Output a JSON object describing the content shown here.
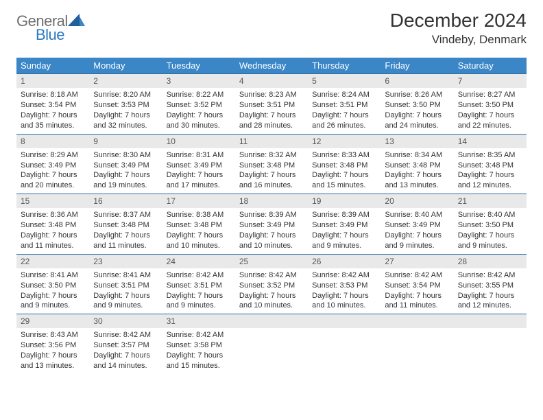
{
  "brand": {
    "word1": "General",
    "word2": "Blue"
  },
  "title": "December 2024",
  "location": "Vindeby, Denmark",
  "colors": {
    "header_bg": "#3b86c7",
    "header_text": "#ffffff",
    "rule": "#2b6aa3",
    "daynum_bg": "#e9e9e9",
    "body_text": "#333333",
    "logo_gray": "#6f6f6f",
    "logo_blue": "#2b78c2"
  },
  "weekdays": [
    "Sunday",
    "Monday",
    "Tuesday",
    "Wednesday",
    "Thursday",
    "Friday",
    "Saturday"
  ],
  "weeks": [
    [
      {
        "n": "1",
        "sr": "Sunrise: 8:18 AM",
        "ss": "Sunset: 3:54 PM",
        "dl": "Daylight: 7 hours and 35 minutes."
      },
      {
        "n": "2",
        "sr": "Sunrise: 8:20 AM",
        "ss": "Sunset: 3:53 PM",
        "dl": "Daylight: 7 hours and 32 minutes."
      },
      {
        "n": "3",
        "sr": "Sunrise: 8:22 AM",
        "ss": "Sunset: 3:52 PM",
        "dl": "Daylight: 7 hours and 30 minutes."
      },
      {
        "n": "4",
        "sr": "Sunrise: 8:23 AM",
        "ss": "Sunset: 3:51 PM",
        "dl": "Daylight: 7 hours and 28 minutes."
      },
      {
        "n": "5",
        "sr": "Sunrise: 8:24 AM",
        "ss": "Sunset: 3:51 PM",
        "dl": "Daylight: 7 hours and 26 minutes."
      },
      {
        "n": "6",
        "sr": "Sunrise: 8:26 AM",
        "ss": "Sunset: 3:50 PM",
        "dl": "Daylight: 7 hours and 24 minutes."
      },
      {
        "n": "7",
        "sr": "Sunrise: 8:27 AM",
        "ss": "Sunset: 3:50 PM",
        "dl": "Daylight: 7 hours and 22 minutes."
      }
    ],
    [
      {
        "n": "8",
        "sr": "Sunrise: 8:29 AM",
        "ss": "Sunset: 3:49 PM",
        "dl": "Daylight: 7 hours and 20 minutes."
      },
      {
        "n": "9",
        "sr": "Sunrise: 8:30 AM",
        "ss": "Sunset: 3:49 PM",
        "dl": "Daylight: 7 hours and 19 minutes."
      },
      {
        "n": "10",
        "sr": "Sunrise: 8:31 AM",
        "ss": "Sunset: 3:49 PM",
        "dl": "Daylight: 7 hours and 17 minutes."
      },
      {
        "n": "11",
        "sr": "Sunrise: 8:32 AM",
        "ss": "Sunset: 3:48 PM",
        "dl": "Daylight: 7 hours and 16 minutes."
      },
      {
        "n": "12",
        "sr": "Sunrise: 8:33 AM",
        "ss": "Sunset: 3:48 PM",
        "dl": "Daylight: 7 hours and 15 minutes."
      },
      {
        "n": "13",
        "sr": "Sunrise: 8:34 AM",
        "ss": "Sunset: 3:48 PM",
        "dl": "Daylight: 7 hours and 13 minutes."
      },
      {
        "n": "14",
        "sr": "Sunrise: 8:35 AM",
        "ss": "Sunset: 3:48 PM",
        "dl": "Daylight: 7 hours and 12 minutes."
      }
    ],
    [
      {
        "n": "15",
        "sr": "Sunrise: 8:36 AM",
        "ss": "Sunset: 3:48 PM",
        "dl": "Daylight: 7 hours and 11 minutes."
      },
      {
        "n": "16",
        "sr": "Sunrise: 8:37 AM",
        "ss": "Sunset: 3:48 PM",
        "dl": "Daylight: 7 hours and 11 minutes."
      },
      {
        "n": "17",
        "sr": "Sunrise: 8:38 AM",
        "ss": "Sunset: 3:48 PM",
        "dl": "Daylight: 7 hours and 10 minutes."
      },
      {
        "n": "18",
        "sr": "Sunrise: 8:39 AM",
        "ss": "Sunset: 3:49 PM",
        "dl": "Daylight: 7 hours and 10 minutes."
      },
      {
        "n": "19",
        "sr": "Sunrise: 8:39 AM",
        "ss": "Sunset: 3:49 PM",
        "dl": "Daylight: 7 hours and 9 minutes."
      },
      {
        "n": "20",
        "sr": "Sunrise: 8:40 AM",
        "ss": "Sunset: 3:49 PM",
        "dl": "Daylight: 7 hours and 9 minutes."
      },
      {
        "n": "21",
        "sr": "Sunrise: 8:40 AM",
        "ss": "Sunset: 3:50 PM",
        "dl": "Daylight: 7 hours and 9 minutes."
      }
    ],
    [
      {
        "n": "22",
        "sr": "Sunrise: 8:41 AM",
        "ss": "Sunset: 3:50 PM",
        "dl": "Daylight: 7 hours and 9 minutes."
      },
      {
        "n": "23",
        "sr": "Sunrise: 8:41 AM",
        "ss": "Sunset: 3:51 PM",
        "dl": "Daylight: 7 hours and 9 minutes."
      },
      {
        "n": "24",
        "sr": "Sunrise: 8:42 AM",
        "ss": "Sunset: 3:51 PM",
        "dl": "Daylight: 7 hours and 9 minutes."
      },
      {
        "n": "25",
        "sr": "Sunrise: 8:42 AM",
        "ss": "Sunset: 3:52 PM",
        "dl": "Daylight: 7 hours and 10 minutes."
      },
      {
        "n": "26",
        "sr": "Sunrise: 8:42 AM",
        "ss": "Sunset: 3:53 PM",
        "dl": "Daylight: 7 hours and 10 minutes."
      },
      {
        "n": "27",
        "sr": "Sunrise: 8:42 AM",
        "ss": "Sunset: 3:54 PM",
        "dl": "Daylight: 7 hours and 11 minutes."
      },
      {
        "n": "28",
        "sr": "Sunrise: 8:42 AM",
        "ss": "Sunset: 3:55 PM",
        "dl": "Daylight: 7 hours and 12 minutes."
      }
    ],
    [
      {
        "n": "29",
        "sr": "Sunrise: 8:43 AM",
        "ss": "Sunset: 3:56 PM",
        "dl": "Daylight: 7 hours and 13 minutes."
      },
      {
        "n": "30",
        "sr": "Sunrise: 8:42 AM",
        "ss": "Sunset: 3:57 PM",
        "dl": "Daylight: 7 hours and 14 minutes."
      },
      {
        "n": "31",
        "sr": "Sunrise: 8:42 AM",
        "ss": "Sunset: 3:58 PM",
        "dl": "Daylight: 7 hours and 15 minutes."
      },
      null,
      null,
      null,
      null
    ]
  ]
}
